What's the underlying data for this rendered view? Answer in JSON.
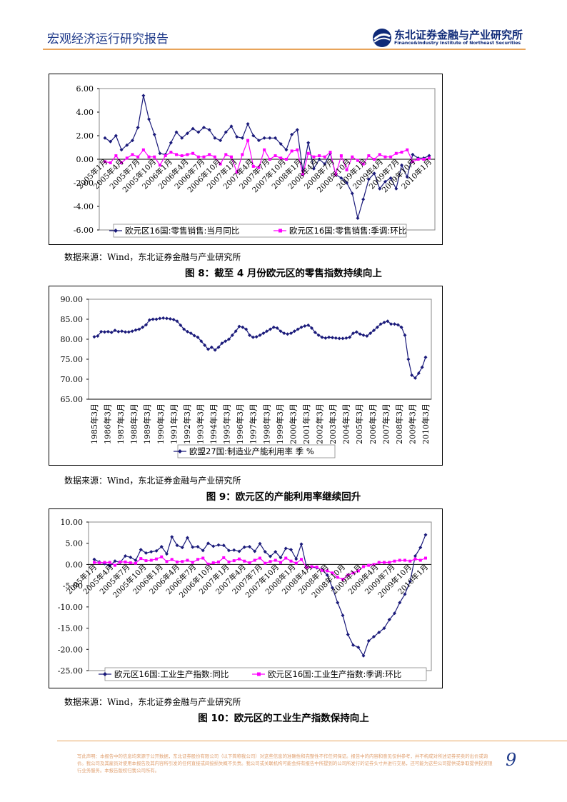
{
  "header": {
    "title": "宏观经济运行研究报告",
    "logo_cn": "东北证券金融与产业研究所",
    "logo_en": "Finance&Industry Institute of Northeast Securities"
  },
  "figures": [
    {
      "source": "数据来源：Wind，东北证券金融与产业研究所",
      "caption": ""
    },
    {
      "source": "数据来源：Wind，东北证券金融与产业研究所",
      "caption": "图 8：截至 4 月份欧元区的零售指数持续向上"
    },
    {
      "source": "数据来源：Wind，东北证券金融与产业研究所",
      "caption": "图 9：欧元区的产能利用率继续回升"
    },
    {
      "source": "数据来源：Wind，东北证券金融与产业研究所",
      "caption": "图 10：欧元区的工业生产指数保持向上"
    }
  ],
  "footer": {
    "disclaimer": "写此声明：本报告中的信息均来源于公开数据，东北证券股份有限公司（以下简称我公司）对这些信息的准确性和完整性不作任何保证。报告中的内容和意见仅供参考，并不构成对所述证券买卖的出价或询价。我公司及其雇员对使用本报告及其内容所引发的任何直接或间接损失概不负责。我公司或关联机构可能会持有报告中所提到的公司所发行的证券头寸并进行交易，还可能为这些公司提供或争取提供投资银行业务服务。本报告版权归我公司所有。",
    "page_number": "9"
  },
  "colors": {
    "series_a": "#1a1a7a",
    "series_b": "#ff00ff"
  },
  "chart_data": [
    {
      "type": "line",
      "ylim": [
        -6,
        6
      ],
      "yticks": [
        "6.00",
        "4.00",
        "2.00",
        "0.00",
        "-2.00",
        "-4.00",
        "-6.00"
      ],
      "ytick_values": [
        6,
        4,
        2,
        0,
        -2,
        -4,
        -6
      ],
      "xtick_labels": [
        "2005年1月",
        "2005年4月",
        "2005年7月",
        "2005年10月",
        "2006年1月",
        "2006年4月",
        "2006年7月",
        "2006年10月",
        "2007年1月",
        "2007年4月",
        "2007年7月",
        "2007年10月",
        "2008年1月",
        "2008年4月",
        "2008年7月",
        "2008年10月",
        "2009年1月",
        "2009年4月",
        "2009年7月",
        "2009年10月",
        "2010年1月"
      ],
      "legend": [
        "欧元区16国:零售销售:当月同比",
        "欧元区16国:零售销售:季调:环比"
      ],
      "series": [
        {
          "name": "欧元区16国:零售销售:当月同比",
          "values": [
            1.8,
            1.5,
            2.0,
            0.8,
            1.2,
            1.6,
            2.7,
            5.4,
            3.4,
            2.1,
            0.5,
            0.4,
            1.4,
            2.3,
            1.8,
            2.2,
            2.6,
            2.3,
            2.7,
            2.5,
            1.8,
            1.6,
            2.3,
            2.8,
            1.9,
            1.8,
            3.0,
            2.0,
            1.6,
            1.8,
            1.8,
            1.8,
            1.3,
            0.8,
            2.1,
            2.5,
            -1.0,
            1.4,
            -0.8,
            0.0,
            -0.4,
            0.5,
            -1.3,
            -1.6,
            -2.0,
            -2.9,
            -5.0,
            -3.4,
            -1.7,
            -1.2,
            -2.5,
            -1.9,
            -1.6,
            -2.5,
            -0.5,
            -1.5,
            0.4,
            0.1,
            0.1,
            0.3
          ]
        },
        {
          "name": "欧元区16国:零售销售:季调:环比",
          "values": [
            -0.2,
            -0.3,
            0.3,
            -0.3,
            0.1,
            0.4,
            0.2,
            0.8,
            0.2,
            0.2,
            -0.5,
            0.3,
            0.6,
            0.4,
            0.3,
            0.4,
            0.5,
            0.2,
            0.2,
            0.4,
            0.2,
            -0.4,
            0.4,
            0.2,
            -1.1,
            0.4,
            1.6,
            -0.6,
            -0.7,
            0.8,
            0.0,
            0.3,
            0.1,
            0.0,
            0.7,
            0.8,
            -1.3,
            0.5,
            0.2,
            0.3,
            0.2,
            0.6,
            -1.3,
            0.3,
            -0.9,
            0.2,
            -0.1,
            -0.4,
            0.3,
            0.0,
            0.4,
            0.2,
            0.2,
            0.5,
            0.6,
            0.8,
            -0.2,
            0.0,
            0.0,
            0.1
          ]
        }
      ]
    },
    {
      "type": "line",
      "ylim": [
        65,
        90
      ],
      "yticks": [
        "90.00",
        "85.00",
        "80.00",
        "75.00",
        "70.00",
        "65.00"
      ],
      "ytick_values": [
        90,
        85,
        80,
        75,
        70,
        65
      ],
      "xtick_labels": [
        "1985年3月",
        "1986年3月",
        "1987年3月",
        "1988年3月",
        "1989年3月",
        "1990年3月",
        "1991年3月",
        "1992年3月",
        "1993年3月",
        "1994年3月",
        "1995年3月",
        "1996年3月",
        "1997年3月",
        "1998年3月",
        "1999年3月",
        "2000年3月",
        "2001年3月",
        "2002年3月",
        "2003年3月",
        "2004年3月",
        "2005年3月",
        "2006年3月",
        "2007年3月",
        "2008年3月",
        "2009年3月",
        "2010年3月"
      ],
      "legend": [
        "欧盟27国:制造业产能利用率 季 %"
      ],
      "series": [
        {
          "name": "欧盟27国:制造业产能利用率 季 %",
          "values": [
            80.6,
            80.8,
            81.9,
            81.8,
            81.9,
            81.7,
            82.2,
            81.9,
            82.0,
            81.8,
            81.8,
            82.0,
            82.3,
            82.5,
            83.0,
            83.6,
            84.8,
            85.0,
            85.0,
            85.2,
            85.3,
            85.2,
            85.1,
            84.9,
            84.5,
            83.5,
            82.5,
            81.9,
            81.5,
            80.9,
            80.5,
            79.5,
            78.5,
            77.5,
            78.0,
            77.3,
            78.0,
            79.0,
            79.5,
            80.0,
            81.0,
            82.0,
            83.2,
            83.0,
            82.5,
            81.0,
            80.5,
            80.6,
            81.0,
            81.5,
            82.0,
            82.5,
            83.0,
            82.8,
            82.0,
            81.5,
            81.3,
            81.5,
            82.0,
            82.5,
            83.0,
            83.3,
            83.5,
            82.8,
            81.7,
            81.0,
            80.5,
            80.3,
            80.5,
            80.4,
            80.3,
            80.2,
            80.2,
            80.3,
            80.5,
            81.5,
            81.8,
            81.3,
            81.0,
            80.8,
            81.5,
            82.2,
            83.0,
            83.8,
            84.2,
            84.5,
            83.8,
            83.8,
            83.6,
            83.0,
            81.0,
            75.0,
            71.0,
            70.3,
            71.5,
            73.0,
            75.5
          ]
        }
      ]
    },
    {
      "type": "line",
      "ylim": [
        -25,
        10
      ],
      "yticks": [
        "10.00",
        "5.00",
        "0.00",
        "-5.00",
        "-10.00",
        "-15.00",
        "-20.00",
        "-25.00"
      ],
      "ytick_values": [
        10,
        5,
        0,
        -5,
        -10,
        -15,
        -20,
        -25
      ],
      "xtick_labels": [
        "2005年1月",
        "2005年4月",
        "2005年7月",
        "2005年10月",
        "2006年1月",
        "2006年4月",
        "2006年7月",
        "2006年10月",
        "2007年1月",
        "2007年4月",
        "2007年7月",
        "2007年10月",
        "2008年1月",
        "2008年4月",
        "2008年7月",
        "2008年10月",
        "2009年1月",
        "2009年4月",
        "2009年7月",
        "2009年10月",
        "2010年1月"
      ],
      "legend": [
        "欧元区16国:工业生产指数:同比",
        "欧元区16国:工业生产指数:季调:环比"
      ],
      "series": [
        {
          "name": "欧元区16国:工业生产指数:同比",
          "values": [
            1.2,
            0.6,
            0.2,
            -0.3,
            0.8,
            0.5,
            2.0,
            1.7,
            1.0,
            3.5,
            2.7,
            3.0,
            3.2,
            4.2,
            2.5,
            6.5,
            4.5,
            4.0,
            6.3,
            4.1,
            4.2,
            3.3,
            5.0,
            4.3,
            4.6,
            4.5,
            3.3,
            3.4,
            3.1,
            4.1,
            4.2,
            3.1,
            4.9,
            3.0,
            1.9,
            3.0,
            1.6,
            3.8,
            3.5,
            1.3,
            4.8,
            -0.6,
            -0.6,
            -0.8,
            -1.2,
            -2.5,
            -5.5,
            -9.0,
            -12.0,
            -16.5,
            -19.0,
            -19.5,
            -21.5,
            -18.0,
            -17.0,
            -16.0,
            -15.0,
            -13.0,
            -11.5,
            -9.0,
            -7.0,
            -4.0,
            2.0,
            4.0,
            7.0
          ]
        },
        {
          "name": "欧元区16国:工业生产指数:季调:环比",
          "values": [
            0.5,
            0.4,
            0.5,
            0.5,
            -0.2,
            0.6,
            0.6,
            0.4,
            0.3,
            1.4,
            0.9,
            1.0,
            1.3,
            1.8,
            0.7,
            1.2,
            0.6,
            0.7,
            1.0,
            0.5,
            1.2,
            1.5,
            0.1,
            0.4,
            0.6,
            1.6,
            0.6,
            0.9,
            1.3,
            0.8,
            0.4,
            1.0,
            1.5,
            0.3,
            0.7,
            1.0,
            0.5,
            1.5,
            0.8,
            0.3,
            1.2,
            -0.7,
            -0.5,
            -0.6,
            -1.4,
            -1.5,
            -2.0,
            -3.0,
            -3.5,
            -2.5,
            -2.0,
            -1.5,
            -0.5,
            -0.2,
            0.0,
            0.5,
            0.5,
            0.5,
            0.8,
            1.0,
            1.0,
            0.8,
            1.3,
            1.0,
            1.5
          ]
        }
      ]
    }
  ]
}
